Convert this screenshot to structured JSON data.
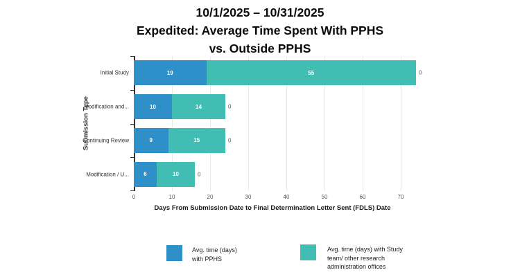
{
  "title": {
    "line1": "10/1/2025 – 10/31/2025",
    "line2": "Expedited: Average Time Spent With PPHS",
    "line3": "vs. Outside PPHS"
  },
  "chart_data": {
    "type": "bar",
    "orientation": "horizontal-stacked",
    "title": "10/1/2025 – 10/31/2025 Expedited: Average Time Spent With PPHS vs. Outside PPHS",
    "categories": [
      "Initial Study",
      "Modification and...",
      "Continuing Review",
      "Modification / U..."
    ],
    "series": [
      {
        "name": "Avg. time (days) with PPHS",
        "color": "#2E8FC9",
        "values": [
          19,
          10,
          9,
          6
        ]
      },
      {
        "name": "Avg. time (days) with Study team/ other research administration offices",
        "color": "#41BDB4",
        "values": [
          55,
          14,
          15,
          10
        ]
      }
    ],
    "end_labels": [
      "0",
      "0",
      "0",
      "0"
    ],
    "xlabel": "Days From Submission Date to Final Determination Letter Sent (FDLS) Date",
    "ylabel": "Submission Type",
    "xticks": [
      0,
      10,
      20,
      30,
      40,
      50,
      60,
      70
    ],
    "xlim": [
      0,
      80
    ],
    "grid": true,
    "gridline_color": "#e9e9e9",
    "bar_label_color": "#ffffff",
    "legend_position": "bottom"
  },
  "legend": {
    "items": [
      {
        "label": "Avg. time (days)\nwith PPHS",
        "color": "#2E8FC9"
      },
      {
        "label": "Avg. time (days) with Study\nteam/ other research\nadministration offices",
        "color": "#41BDB4"
      }
    ]
  }
}
